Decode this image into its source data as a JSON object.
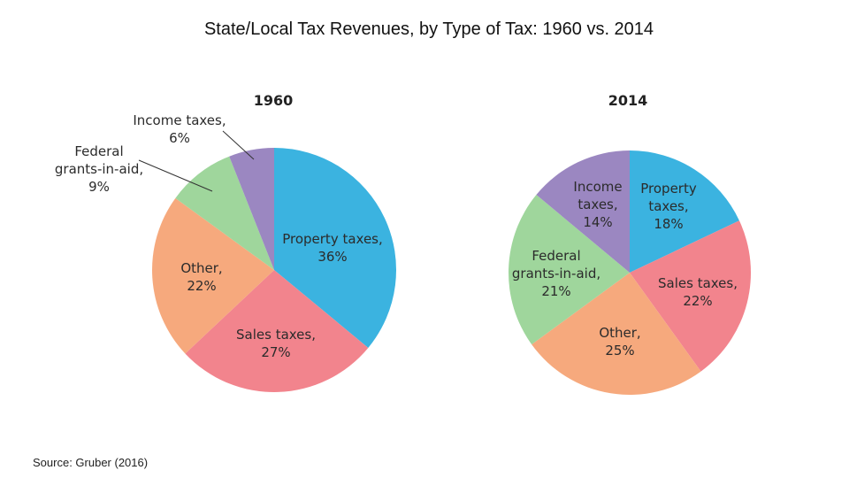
{
  "title": "State/Local Tax Revenues, by Type of Tax: 1960 vs. 2014",
  "source": "Source: Gruber (2016)",
  "colors": {
    "property": "#3bb3e0",
    "sales": "#f2848d",
    "other": "#f6a97d",
    "federal": "#9fd69c",
    "income": "#9b87c1"
  },
  "chart_data": [
    {
      "type": "pie",
      "title": "1960",
      "slices": [
        {
          "key": "property",
          "lines": [
            "Property taxes,",
            "36%"
          ],
          "value": 36
        },
        {
          "key": "sales",
          "lines": [
            "Sales taxes,",
            "27%"
          ],
          "value": 27
        },
        {
          "key": "other",
          "lines": [
            "Other,",
            "22%"
          ],
          "value": 22
        },
        {
          "key": "federal",
          "lines": [
            "Federal",
            "grants-in-aid,",
            "9%"
          ],
          "value": 9
        },
        {
          "key": "income",
          "lines": [
            "Income taxes,",
            "6%"
          ],
          "value": 6
        }
      ]
    },
    {
      "type": "pie",
      "title": "2014",
      "slices": [
        {
          "key": "property",
          "lines": [
            "Property",
            "taxes,",
            "18%"
          ],
          "value": 18
        },
        {
          "key": "sales",
          "lines": [
            "Sales taxes,",
            "22%"
          ],
          "value": 22
        },
        {
          "key": "other",
          "lines": [
            "Other,",
            "25%"
          ],
          "value": 25
        },
        {
          "key": "federal",
          "lines": [
            "Federal",
            "grants-in-aid,",
            "21%"
          ],
          "value": 21
        },
        {
          "key": "income",
          "lines": [
            "Income",
            "taxes,",
            "14%"
          ],
          "value": 14
        }
      ]
    }
  ]
}
